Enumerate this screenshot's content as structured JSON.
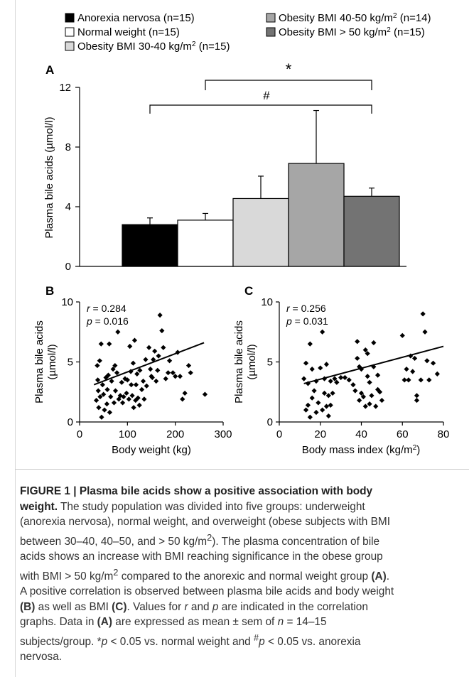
{
  "chart_data": [
    {
      "panel": "A",
      "type": "bar",
      "categories": [
        "Anorexia nervosa (n=15)",
        "Normal weight (n=15)",
        "Obesity BMI 30-40 kg/m2 (n=15)",
        "Obesity BMI 40-50 kg/m2 (n=14)",
        "Obesity BMI > 50 kg/m2 (n=15)"
      ],
      "legend": [
        {
          "pre": "Anorexia nervosa (n=15)",
          "sup": "",
          "post": ""
        },
        {
          "pre": "Normal weight (n=15)",
          "sup": "",
          "post": ""
        },
        {
          "pre": "Obesity BMI 30-40 kg/m",
          "sup": "2",
          "post": " (n=15)"
        },
        {
          "pre": "Obesity BMI 40-50 kg/m",
          "sup": "2",
          "post": " (n=14)"
        },
        {
          "pre": "Obesity BMI > 50 kg/m",
          "sup": "2",
          "post": " (n=15)"
        }
      ],
      "values": [
        2.8,
        3.1,
        4.55,
        6.9,
        4.7
      ],
      "errors": [
        0.45,
        0.45,
        1.5,
        3.55,
        0.55
      ],
      "colors": [
        "#000000",
        "#ffffff",
        "#d9d9d9",
        "#a6a6a6",
        "#737373"
      ],
      "ylabel": "Plasma bile acids (µmol/l)",
      "ylim": [
        0,
        12
      ],
      "yticks": [
        "0",
        "4",
        "8",
        "12"
      ],
      "significance": [
        {
          "symbol": "*",
          "from": 2,
          "to": 5
        },
        {
          "symbol": "#",
          "from": 1,
          "to": 5
        }
      ]
    },
    {
      "panel": "B",
      "type": "scatter",
      "xlabel": "Body weight (kg)",
      "ylabel": [
        "Plasma bile acids",
        "(µmol/l)"
      ],
      "xlim": [
        0,
        300
      ],
      "ylim": [
        0,
        10
      ],
      "xticks": [
        "0",
        "100",
        "200",
        "300"
      ],
      "yticks": [
        "0",
        "5",
        "10"
      ],
      "annotation": {
        "r": "0.284",
        "p": "0.016"
      },
      "trend": [
        [
          30,
          3.1
        ],
        [
          260,
          6.6
        ]
      ],
      "points": [
        [
          35,
          1.8
        ],
        [
          37,
          4.7
        ],
        [
          38,
          3.5
        ],
        [
          39,
          2.6
        ],
        [
          40,
          1.2
        ],
        [
          42,
          5.1
        ],
        [
          43,
          2.1
        ],
        [
          45,
          6.5
        ],
        [
          46,
          0.4
        ],
        [
          48,
          3.1
        ],
        [
          50,
          2.3
        ],
        [
          52,
          1.0
        ],
        [
          55,
          3.7
        ],
        [
          57,
          1.5
        ],
        [
          58,
          2.7
        ],
        [
          60,
          3.9
        ],
        [
          62,
          6.5
        ],
        [
          63,
          0.8
        ],
        [
          65,
          2.1
        ],
        [
          67,
          3.4
        ],
        [
          70,
          4.4
        ],
        [
          72,
          1.6
        ],
        [
          74,
          4.7
        ],
        [
          75,
          2.6
        ],
        [
          78,
          4.1
        ],
        [
          80,
          7.5
        ],
        [
          82,
          1.9
        ],
        [
          85,
          2.2
        ],
        [
          88,
          3.3
        ],
        [
          90,
          1.6
        ],
        [
          92,
          2.1
        ],
        [
          95,
          3.6
        ],
        [
          98,
          2.4
        ],
        [
          100,
          3.5
        ],
        [
          103,
          1.9
        ],
        [
          105,
          6.3
        ],
        [
          107,
          4.2
        ],
        [
          108,
          3.1
        ],
        [
          110,
          2.2
        ],
        [
          112,
          4.9
        ],
        [
          113,
          1.2
        ],
        [
          115,
          6.8
        ],
        [
          117,
          1.8
        ],
        [
          118,
          3.1
        ],
        [
          120,
          4.0
        ],
        [
          122,
          2.0
        ],
        [
          125,
          1.4
        ],
        [
          126,
          4.3
        ],
        [
          130,
          2.7
        ],
        [
          133,
          3.4
        ],
        [
          135,
          1.9
        ],
        [
          138,
          5.2
        ],
        [
          140,
          3.0
        ],
        [
          145,
          6.2
        ],
        [
          148,
          4.4
        ],
        [
          150,
          3.8
        ],
        [
          152,
          3.7
        ],
        [
          154,
          5.2
        ],
        [
          157,
          5.9
        ],
        [
          160,
          3.4
        ],
        [
          163,
          4.3
        ],
        [
          165,
          5.5
        ],
        [
          168,
          8.9
        ],
        [
          172,
          7.6
        ],
        [
          175,
          6.2
        ],
        [
          180,
          3.6
        ],
        [
          185,
          4.1
        ],
        [
          188,
          5.1
        ],
        [
          195,
          4.1
        ],
        [
          200,
          3.8
        ],
        [
          205,
          5.8
        ],
        [
          210,
          3.8
        ],
        [
          215,
          1.9
        ],
        [
          220,
          2.4
        ],
        [
          228,
          4.7
        ],
        [
          232,
          4.1
        ],
        [
          262,
          2.3
        ]
      ]
    },
    {
      "panel": "C",
      "type": "scatter",
      "xlabel": "Body mass index (kg/m",
      "xlabel_sup": "2",
      "xlabel_post": ")",
      "ylabel": [
        "Plasma bile acids",
        "(µmol/l)"
      ],
      "xlim": [
        0,
        80
      ],
      "ylim": [
        0,
        10
      ],
      "xticks": [
        "0",
        "20",
        "40",
        "60",
        "80"
      ],
      "yticks": [
        "0",
        "5",
        "10"
      ],
      "annotation": {
        "r": "0.256",
        "p": "0.031"
      },
      "trend": [
        [
          12,
          3.2
        ],
        [
          80,
          6.3
        ]
      ],
      "points": [
        [
          12,
          3.6
        ],
        [
          13,
          1.0
        ],
        [
          13,
          4.9
        ],
        [
          14,
          3.2
        ],
        [
          14,
          1.4
        ],
        [
          15,
          6.5
        ],
        [
          15,
          0.4
        ],
        [
          16,
          2.0
        ],
        [
          16,
          4.4
        ],
        [
          17,
          2.6
        ],
        [
          18,
          3.4
        ],
        [
          18,
          0.8
        ],
        [
          19,
          1.6
        ],
        [
          20,
          4.5
        ],
        [
          21,
          1.0
        ],
        [
          21,
          7.5
        ],
        [
          22,
          2.4
        ],
        [
          22,
          3.6
        ],
        [
          23,
          4.8
        ],
        [
          23,
          1.3
        ],
        [
          24,
          0.5
        ],
        [
          24,
          2.2
        ],
        [
          25,
          3.4
        ],
        [
          25,
          1.4
        ],
        [
          26,
          2.4
        ],
        [
          27,
          3.6
        ],
        [
          28,
          3.3
        ],
        [
          30,
          3.7
        ],
        [
          32,
          3.7
        ],
        [
          34,
          3.5
        ],
        [
          36,
          3.1
        ],
        [
          37,
          2.6
        ],
        [
          38,
          6.7
        ],
        [
          38,
          5.3
        ],
        [
          39,
          4.6
        ],
        [
          39,
          1.8
        ],
        [
          40,
          2.4
        ],
        [
          40,
          4.4
        ],
        [
          41,
          2.1
        ],
        [
          42,
          6.0
        ],
        [
          42,
          1.3
        ],
        [
          43,
          5.7
        ],
        [
          43,
          3.8
        ],
        [
          44,
          3.3
        ],
        [
          44,
          1.5
        ],
        [
          45,
          2.2
        ],
        [
          46,
          4.6
        ],
        [
          46,
          6.6
        ],
        [
          47,
          1.3
        ],
        [
          48,
          3.9
        ],
        [
          48,
          2.7
        ],
        [
          49,
          2.5
        ],
        [
          50,
          1.8
        ],
        [
          60,
          7.2
        ],
        [
          61,
          3.5
        ],
        [
          62,
          4.4
        ],
        [
          63,
          3.5
        ],
        [
          64,
          5.5
        ],
        [
          65,
          4.2
        ],
        [
          66,
          5.3
        ],
        [
          67,
          2.2
        ],
        [
          67,
          1.8
        ],
        [
          69,
          3.5
        ],
        [
          70,
          9.0
        ],
        [
          71,
          7.5
        ],
        [
          72,
          5.1
        ],
        [
          73,
          3.5
        ],
        [
          75,
          4.9
        ],
        [
          77,
          4.0
        ]
      ]
    }
  ],
  "caption": {
    "lead": "FIGURE 1 | Plasma bile acids show a positive association with body weight.",
    "lines": [
      {
        "html": "<span class=\"lead\">FIGURE 1 | Plasma bile acids show a positive association with body</span>"
      },
      {
        "html": "<span class=\"lead\">weight.</span> The study population was divided into five groups: underweight"
      },
      {
        "html": "(anorexia nervosa), normal weight, and overweight (obese subjects with BMI"
      },
      {
        "html": "between 30–40, 40–50, and &gt; 50 kg/m<sup>2</sup>). The plasma concentration of bile"
      },
      {
        "html": "acids shows an increase with BMI reaching significance in the obese group"
      },
      {
        "html": "with BMI &gt; 50 kg/m<sup>2</sup> compared to the anorexic and normal weight group <b>(A)</b>."
      },
      {
        "html": "A positive correlation is observed between plasma bile acids and body weight"
      },
      {
        "html": "<b>(B)</b> as well as BMI <b>(C)</b>. Values for <i>r</i> and <i>p</i> are indicated in the correlation"
      },
      {
        "html": "graphs. Data in <b>(A)</b> are expressed as mean ± sem of <i>n</i> = 14–15"
      },
      {
        "html": "subjects/group. *<i>p</i> &lt; 0.05 vs. normal weight and <sup>#</sup><i>p</i> &lt; 0.05 vs. anorexia"
      },
      {
        "html": "nervosa."
      }
    ]
  }
}
